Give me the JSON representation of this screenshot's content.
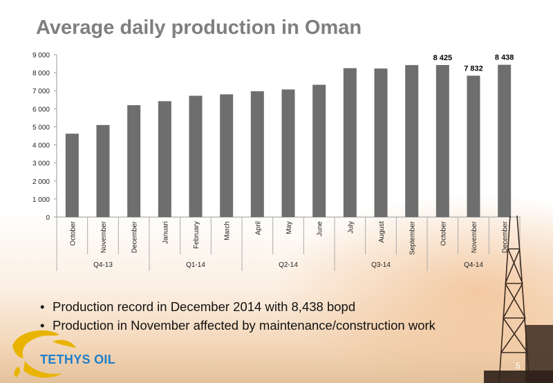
{
  "title": "Average daily production in Oman",
  "bullets": [
    "Production record in December 2014 with 8,438 bopd",
    "Production in November affected by maintenance/construction work"
  ],
  "logo_text": "TETHYS OIL",
  "page_number": "5",
  "colors": {
    "bar": "#6e6e6e",
    "title": "#7f7f7f",
    "logo_blue": "#1e7ec8",
    "logo_gold": "#e8b400"
  },
  "chart_data": {
    "type": "bar",
    "categories": [
      "October",
      "November",
      "December",
      "Januari",
      "February",
      "March",
      "April",
      "May",
      "June",
      "July",
      "August",
      "September",
      "October",
      "November",
      "December"
    ],
    "values": [
      4620,
      5100,
      6200,
      6420,
      6720,
      6800,
      6970,
      7070,
      7330,
      8250,
      8230,
      8420,
      8425,
      7832,
      8438
    ],
    "data_labels": [
      null,
      null,
      null,
      null,
      null,
      null,
      null,
      null,
      null,
      null,
      null,
      null,
      "8 425",
      "7 832",
      "8 438"
    ],
    "groups": [
      {
        "label": "Q4-13",
        "count": 3
      },
      {
        "label": "Q1-14",
        "count": 3
      },
      {
        "label": "Q2-14",
        "count": 3
      },
      {
        "label": "Q3-14",
        "count": 3
      },
      {
        "label": "Q4-14",
        "count": 3
      }
    ],
    "yticks": [
      "0",
      "1 000",
      "2 000",
      "3 000",
      "4 000",
      "5 000",
      "6 000",
      "7 000",
      "8 000",
      "9 000"
    ],
    "ylim": [
      0,
      9000
    ],
    "grid": false,
    "legend": "none"
  }
}
